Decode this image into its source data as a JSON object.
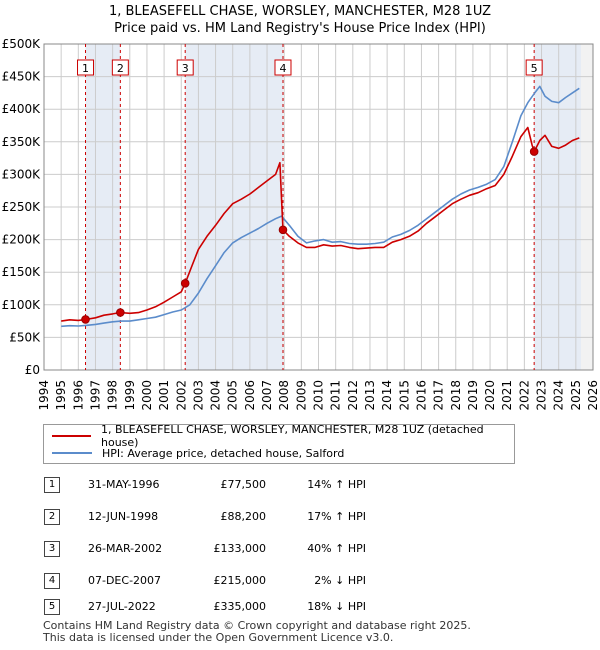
{
  "chart_data": {
    "type": "line",
    "title": "1, BLEASEFELL CHASE, WORSLEY, MANCHESTER, M28 1UZ",
    "subtitle": "Price paid vs. HM Land Registry's House Price Index (HPI)",
    "xlim": [
      1994,
      2026
    ],
    "ylim": [
      0,
      500000
    ],
    "x_ticks": [
      1994,
      1995,
      1996,
      1997,
      1998,
      1999,
      2000,
      2001,
      2002,
      2003,
      2004,
      2005,
      2006,
      2007,
      2008,
      2009,
      2010,
      2011,
      2012,
      2013,
      2014,
      2015,
      2016,
      2017,
      2018,
      2019,
      2020,
      2021,
      2022,
      2023,
      2024,
      2025,
      2026
    ],
    "y_ticks": [
      {
        "value": 0,
        "label": "£0"
      },
      {
        "value": 50000,
        "label": "£50K"
      },
      {
        "value": 100000,
        "label": "£100K"
      },
      {
        "value": 150000,
        "label": "£150K"
      },
      {
        "value": 200000,
        "label": "£200K"
      },
      {
        "value": 250000,
        "label": "£250K"
      },
      {
        "value": 300000,
        "label": "£300K"
      },
      {
        "value": 350000,
        "label": "£350K"
      },
      {
        "value": 400000,
        "label": "£400K"
      },
      {
        "value": 450000,
        "label": "£450K"
      },
      {
        "value": 500000,
        "label": "£500K"
      }
    ],
    "series": [
      {
        "name": "1, BLEASEFELL CHASE, WORSLEY, MANCHESTER, M28 1UZ (detached house)",
        "color": "#cc0000",
        "points": [
          [
            1995.0,
            75000
          ],
          [
            1995.5,
            77000
          ],
          [
            1996.0,
            76000
          ],
          [
            1996.42,
            77500
          ],
          [
            1997.0,
            80000
          ],
          [
            1997.5,
            84000
          ],
          [
            1998.0,
            86000
          ],
          [
            1998.45,
            88200
          ],
          [
            1999.0,
            87000
          ],
          [
            1999.5,
            88000
          ],
          [
            2000.0,
            92000
          ],
          [
            2000.5,
            97000
          ],
          [
            2001.0,
            104000
          ],
          [
            2001.5,
            112000
          ],
          [
            2002.0,
            120000
          ],
          [
            2002.23,
            133000
          ],
          [
            2002.6,
            158000
          ],
          [
            2003.0,
            185000
          ],
          [
            2003.5,
            205000
          ],
          [
            2004.0,
            222000
          ],
          [
            2004.5,
            240000
          ],
          [
            2005.0,
            255000
          ],
          [
            2005.5,
            262000
          ],
          [
            2006.0,
            270000
          ],
          [
            2006.5,
            280000
          ],
          [
            2007.0,
            290000
          ],
          [
            2007.5,
            300000
          ],
          [
            2007.75,
            318000
          ],
          [
            2007.85,
            260000
          ],
          [
            2007.93,
            215000
          ],
          [
            2008.3,
            205000
          ],
          [
            2008.8,
            195000
          ],
          [
            2009.3,
            188000
          ],
          [
            2009.8,
            188000
          ],
          [
            2010.3,
            192000
          ],
          [
            2010.8,
            190000
          ],
          [
            2011.3,
            191000
          ],
          [
            2011.8,
            188000
          ],
          [
            2012.3,
            186000
          ],
          [
            2012.8,
            187000
          ],
          [
            2013.3,
            188000
          ],
          [
            2013.8,
            188000
          ],
          [
            2014.3,
            196000
          ],
          [
            2014.8,
            200000
          ],
          [
            2015.3,
            205000
          ],
          [
            2015.8,
            213000
          ],
          [
            2016.3,
            225000
          ],
          [
            2016.8,
            235000
          ],
          [
            2017.3,
            245000
          ],
          [
            2017.8,
            255000
          ],
          [
            2018.3,
            262000
          ],
          [
            2018.8,
            268000
          ],
          [
            2019.3,
            272000
          ],
          [
            2019.8,
            278000
          ],
          [
            2020.3,
            283000
          ],
          [
            2020.8,
            300000
          ],
          [
            2021.3,
            328000
          ],
          [
            2021.8,
            358000
          ],
          [
            2022.2,
            372000
          ],
          [
            2022.45,
            345000
          ],
          [
            2022.57,
            335000
          ],
          [
            2022.9,
            352000
          ],
          [
            2023.2,
            360000
          ],
          [
            2023.6,
            343000
          ],
          [
            2024.0,
            340000
          ],
          [
            2024.4,
            345000
          ],
          [
            2024.8,
            352000
          ],
          [
            2025.2,
            356000
          ]
        ]
      },
      {
        "name": "HPI: Average price, detached house, Salford",
        "color": "#5b8ccb",
        "points": [
          [
            1995.0,
            67000
          ],
          [
            1995.5,
            68000
          ],
          [
            1996.0,
            67500
          ],
          [
            1996.5,
            68500
          ],
          [
            1997.0,
            70000
          ],
          [
            1997.5,
            72000
          ],
          [
            1998.0,
            74000
          ],
          [
            1998.5,
            75000
          ],
          [
            1999.0,
            75000
          ],
          [
            1999.5,
            77000
          ],
          [
            2000.0,
            79000
          ],
          [
            2000.5,
            81000
          ],
          [
            2001.0,
            85000
          ],
          [
            2001.5,
            89000
          ],
          [
            2002.0,
            92000
          ],
          [
            2002.5,
            100000
          ],
          [
            2003.0,
            118000
          ],
          [
            2003.5,
            140000
          ],
          [
            2004.0,
            160000
          ],
          [
            2004.5,
            180000
          ],
          [
            2005.0,
            195000
          ],
          [
            2005.5,
            203000
          ],
          [
            2006.0,
            210000
          ],
          [
            2006.5,
            217000
          ],
          [
            2007.0,
            225000
          ],
          [
            2007.5,
            232000
          ],
          [
            2007.85,
            236000
          ],
          [
            2008.3,
            222000
          ],
          [
            2008.8,
            205000
          ],
          [
            2009.3,
            195000
          ],
          [
            2009.8,
            198000
          ],
          [
            2010.3,
            200000
          ],
          [
            2010.8,
            196000
          ],
          [
            2011.3,
            197000
          ],
          [
            2011.8,
            194000
          ],
          [
            2012.3,
            193000
          ],
          [
            2012.8,
            193000
          ],
          [
            2013.3,
            194000
          ],
          [
            2013.8,
            196000
          ],
          [
            2014.3,
            204000
          ],
          [
            2014.8,
            208000
          ],
          [
            2015.3,
            214000
          ],
          [
            2015.8,
            222000
          ],
          [
            2016.3,
            232000
          ],
          [
            2016.8,
            242000
          ],
          [
            2017.3,
            252000
          ],
          [
            2017.8,
            262000
          ],
          [
            2018.3,
            270000
          ],
          [
            2018.8,
            276000
          ],
          [
            2019.3,
            280000
          ],
          [
            2019.8,
            285000
          ],
          [
            2020.3,
            292000
          ],
          [
            2020.8,
            312000
          ],
          [
            2021.3,
            350000
          ],
          [
            2021.8,
            390000
          ],
          [
            2022.2,
            410000
          ],
          [
            2022.6,
            425000
          ],
          [
            2022.9,
            435000
          ],
          [
            2023.2,
            420000
          ],
          [
            2023.6,
            412000
          ],
          [
            2024.0,
            410000
          ],
          [
            2024.4,
            418000
          ],
          [
            2024.8,
            425000
          ],
          [
            2025.2,
            432000
          ]
        ]
      }
    ],
    "sales": [
      {
        "label": "1",
        "date": "31-MAY-1996",
        "year": 1996.42,
        "price": 77500,
        "price_text": "£77,500",
        "hpi_text": "14% ↑ HPI"
      },
      {
        "label": "2",
        "date": "12-JUN-1998",
        "year": 1998.45,
        "price": 88200,
        "price_text": "£88,200",
        "hpi_text": "17% ↑ HPI"
      },
      {
        "label": "3",
        "date": "26-MAR-2002",
        "year": 2002.23,
        "price": 133000,
        "price_text": "£133,000",
        "hpi_text": "40% ↑ HPI"
      },
      {
        "label": "4",
        "date": "07-DEC-2007",
        "year": 2007.93,
        "price": 215000,
        "price_text": "£215,000",
        "hpi_text": "2% ↓ HPI"
      },
      {
        "label": "5",
        "date": "27-JUL-2022",
        "year": 2022.57,
        "price": 335000,
        "price_text": "£335,000",
        "hpi_text": "18% ↓ HPI"
      }
    ]
  },
  "legend": {
    "property_label": "1, BLEASEFELL CHASE, WORSLEY, MANCHESTER, M28 1UZ (detached house)",
    "hpi_label": "HPI: Average price, detached house, Salford"
  },
  "footer": {
    "line1": "Contains HM Land Registry data © Crown copyright and database right 2025.",
    "line2": "This data is licensed under the Open Government Licence v3.0."
  },
  "colors": {
    "property": "#cc0000",
    "hpi": "#5b8ccb",
    "grid": "#cccccc",
    "shade": "#e6ecf5",
    "marker_line": "#cc0000"
  }
}
